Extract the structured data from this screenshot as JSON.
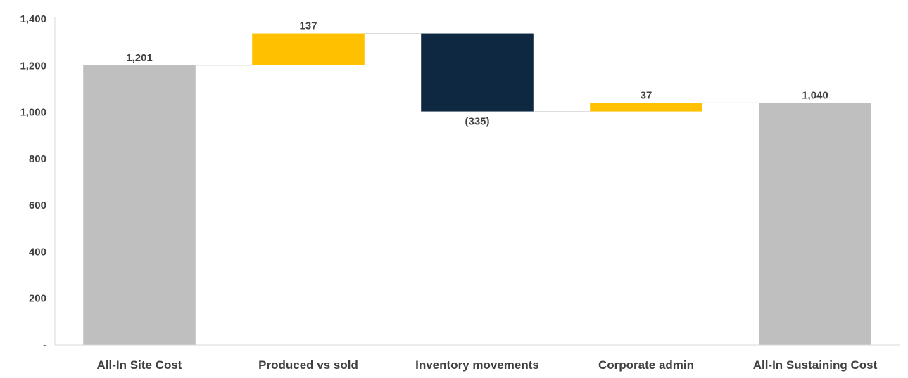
{
  "chart_data": {
    "type": "bar",
    "subtype": "waterfall",
    "title": "",
    "xlabel": "",
    "ylabel": "",
    "ylim": [
      0,
      1400
    ],
    "y_ticks": [
      {
        "value": 0,
        "label": "-"
      },
      {
        "value": 200,
        "label": "200"
      },
      {
        "value": 400,
        "label": "400"
      },
      {
        "value": 600,
        "label": "600"
      },
      {
        "value": 800,
        "label": "800"
      },
      {
        "value": 1000,
        "label": "1,000"
      },
      {
        "value": 1200,
        "label": "1,200"
      },
      {
        "value": 1400,
        "label": "1,400"
      }
    ],
    "grid": false,
    "legend": "none",
    "categories": [
      "All-In Site Cost",
      "Produced vs sold",
      "Inventory movements",
      "Corporate admin",
      "All-In Sustaining Cost"
    ],
    "values": [
      1201,
      137,
      -335,
      37,
      1040
    ],
    "bar_kinds": [
      "total",
      "delta",
      "delta",
      "delta",
      "total"
    ],
    "data_labels": [
      "1,201",
      "137",
      "(335)",
      "37",
      "1,040"
    ],
    "colors": {
      "total": "#bfbfbf",
      "increase": "#ffc000",
      "decrease": "#0f2842",
      "connector": "#d9d9d9",
      "axis": "#d9d9d9",
      "text": "#404040"
    }
  }
}
